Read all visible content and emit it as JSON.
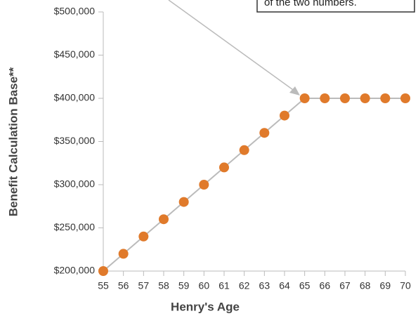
{
  "chart_data": {
    "type": "line",
    "annotation": "of the two numbers.",
    "x_label": "Henry's Age",
    "y_label": "Benefit Calculation Base**",
    "x": [
      55,
      56,
      57,
      58,
      59,
      60,
      61,
      62,
      63,
      64,
      65,
      66,
      67,
      68,
      69,
      70
    ],
    "series": [
      {
        "name": "Benefit Calculation Base",
        "color": "#e07a2b",
        "values": [
          200000,
          220000,
          240000,
          260000,
          280000,
          300000,
          320000,
          340000,
          360000,
          380000,
          400000,
          400000,
          400000,
          400000,
          400000,
          400000
        ]
      }
    ],
    "xlim": [
      55,
      70
    ],
    "xticks": [
      55,
      56,
      57,
      58,
      59,
      60,
      61,
      62,
      63,
      64,
      65,
      66,
      67,
      68,
      69,
      70
    ],
    "ylim": [
      200000,
      500000
    ],
    "yticks": [
      {
        "value": 200000,
        "label": "$200,000"
      },
      {
        "value": 250000,
        "label": "$250,000"
      },
      {
        "value": 300000,
        "label": "$300,000"
      },
      {
        "value": 350000,
        "label": "$350,000"
      },
      {
        "value": 400000,
        "label": "$400,000"
      },
      {
        "value": 450000,
        "label": "$450,000"
      },
      {
        "value": 500000,
        "label": "$500,000"
      }
    ],
    "line_color": "#bbbbbb"
  }
}
